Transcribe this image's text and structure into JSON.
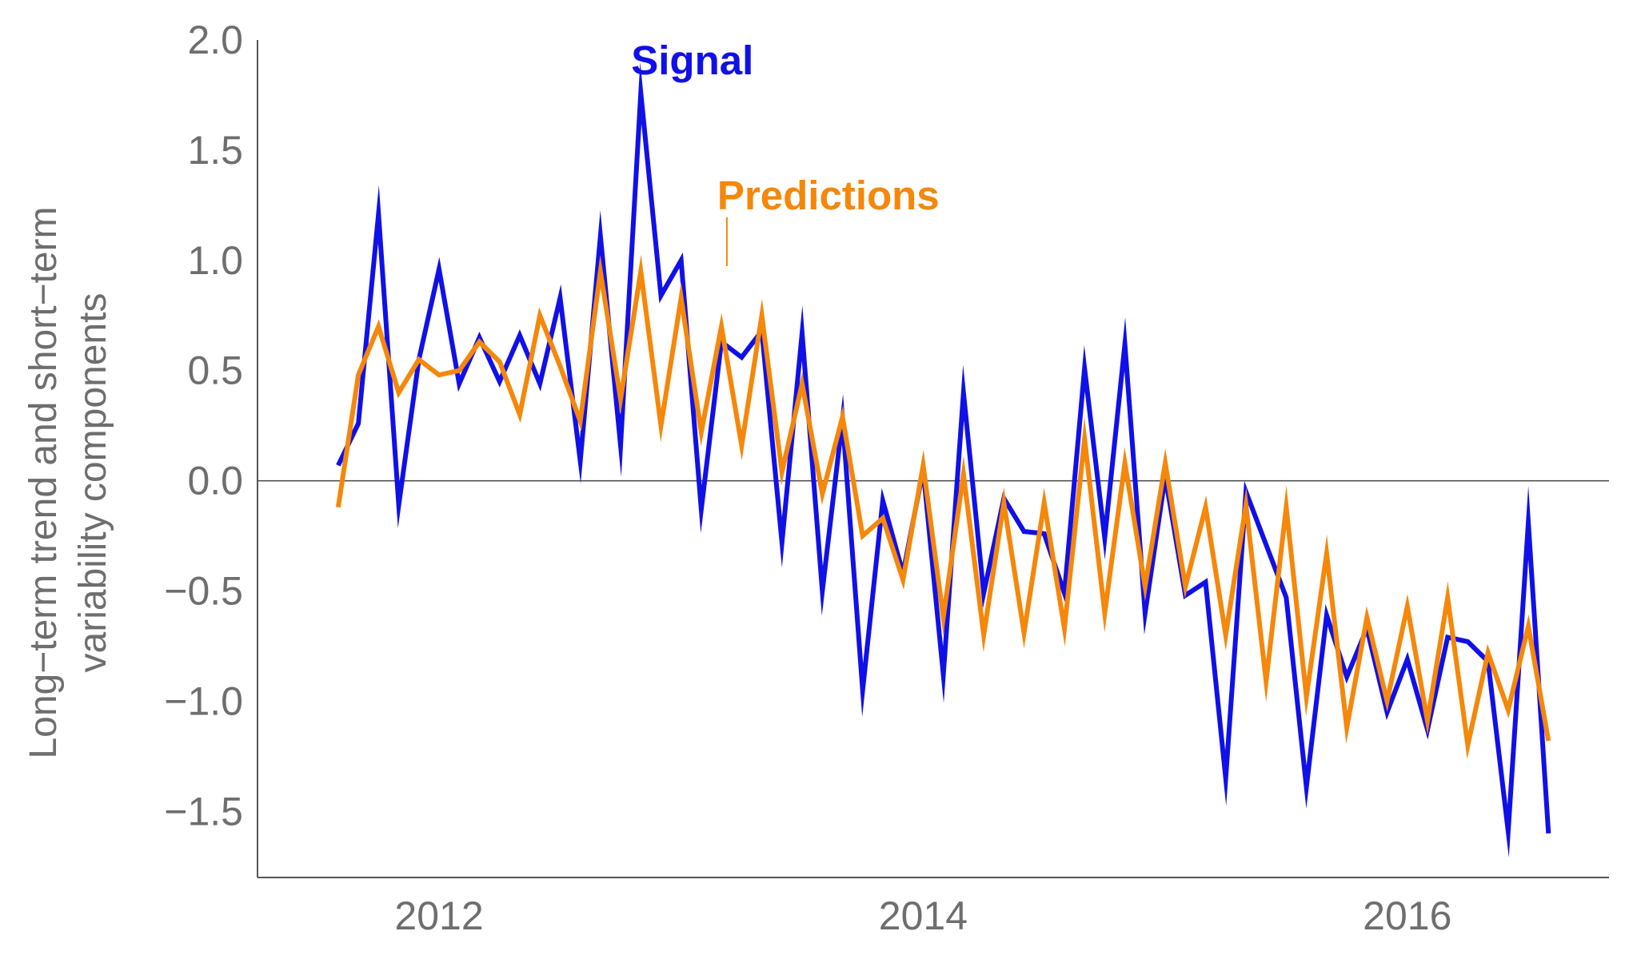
{
  "chart_data": {
    "type": "line",
    "title": "",
    "xlabel": "",
    "ylabel_lines": [
      "Long−term trend and short−term",
      "variability components"
    ],
    "x_ticks": [
      "2012",
      "2014",
      "2016"
    ],
    "y_ticks": [
      "2.0",
      "1.5",
      "1.0",
      "0.5",
      "0.0",
      "−0.5",
      "−1.0",
      "−1.5"
    ],
    "ylim": [
      -1.8,
      2.0
    ],
    "xlim": [
      "2011-04",
      "2016-11"
    ],
    "grid": false,
    "zero_line": true,
    "x": [
      "2011-08",
      "2011-09",
      "2011-10",
      "2011-11",
      "2011-12",
      "2012-01",
      "2012-02",
      "2012-03",
      "2012-04",
      "2012-05",
      "2012-06",
      "2012-07",
      "2012-08",
      "2012-09",
      "2012-10",
      "2012-11",
      "2012-12",
      "2013-01",
      "2013-02",
      "2013-03",
      "2013-04",
      "2013-05",
      "2013-06",
      "2013-07",
      "2013-08",
      "2013-09",
      "2013-10",
      "2013-11",
      "2013-12",
      "2014-01",
      "2014-02",
      "2014-03",
      "2014-04",
      "2014-05",
      "2014-06",
      "2014-07",
      "2014-08",
      "2014-09",
      "2014-10",
      "2014-11",
      "2014-12",
      "2015-01",
      "2015-02",
      "2015-03",
      "2015-04",
      "2015-05",
      "2015-06",
      "2015-07",
      "2015-08",
      "2015-09",
      "2015-10",
      "2015-11",
      "2015-12",
      "2016-01",
      "2016-02",
      "2016-03",
      "2016-04",
      "2016-05",
      "2016-06",
      "2016-07",
      "2016-08"
    ],
    "series": [
      {
        "name": "Signal",
        "color": "#1010e8",
        "values": [
          0.07,
          0.26,
          1.21,
          -0.11,
          0.55,
          0.96,
          0.44,
          0.65,
          0.45,
          0.66,
          0.44,
          0.83,
          0.09,
          1.11,
          0.16,
          1.76,
          0.84,
          1.0,
          -0.13,
          0.63,
          0.56,
          0.68,
          -0.28,
          0.67,
          -0.5,
          0.28,
          -0.95,
          -0.09,
          -0.42,
          0.05,
          -0.88,
          0.4,
          -0.51,
          -0.08,
          -0.23,
          -0.24,
          -0.51,
          0.51,
          -0.26,
          0.62,
          -0.6,
          0.02,
          -0.52,
          -0.46,
          -1.35,
          -0.05,
          -0.29,
          -0.53,
          -1.39,
          -0.61,
          -0.89,
          -0.67,
          -1.05,
          -0.81,
          -1.13,
          -0.71,
          -0.73,
          -0.82,
          -1.59,
          -0.19,
          -1.6
        ]
      },
      {
        "name": "Predictions",
        "color": "#f5870a",
        "values": [
          -0.12,
          0.48,
          0.7,
          0.4,
          0.55,
          0.48,
          0.5,
          0.63,
          0.54,
          0.3,
          0.75,
          0.52,
          0.27,
          0.95,
          0.37,
          0.95,
          0.25,
          0.83,
          0.22,
          0.7,
          0.16,
          0.75,
          0.04,
          0.44,
          -0.06,
          0.29,
          -0.25,
          -0.17,
          -0.45,
          0.07,
          -0.62,
          0.03,
          -0.7,
          -0.1,
          -0.69,
          -0.1,
          -0.67,
          0.19,
          -0.6,
          0.08,
          -0.48,
          0.08,
          -0.48,
          -0.12,
          -0.7,
          -0.11,
          -0.91,
          -0.12,
          -0.98,
          -0.33,
          -1.12,
          -0.62,
          -1.0,
          -0.57,
          -1.09,
          -0.53,
          -1.2,
          -0.78,
          -1.04,
          -0.66,
          -1.18
        ]
      }
    ],
    "annotations": [
      {
        "text": "Signal",
        "series": 0
      },
      {
        "text": "Predictions",
        "series": 1
      }
    ]
  }
}
